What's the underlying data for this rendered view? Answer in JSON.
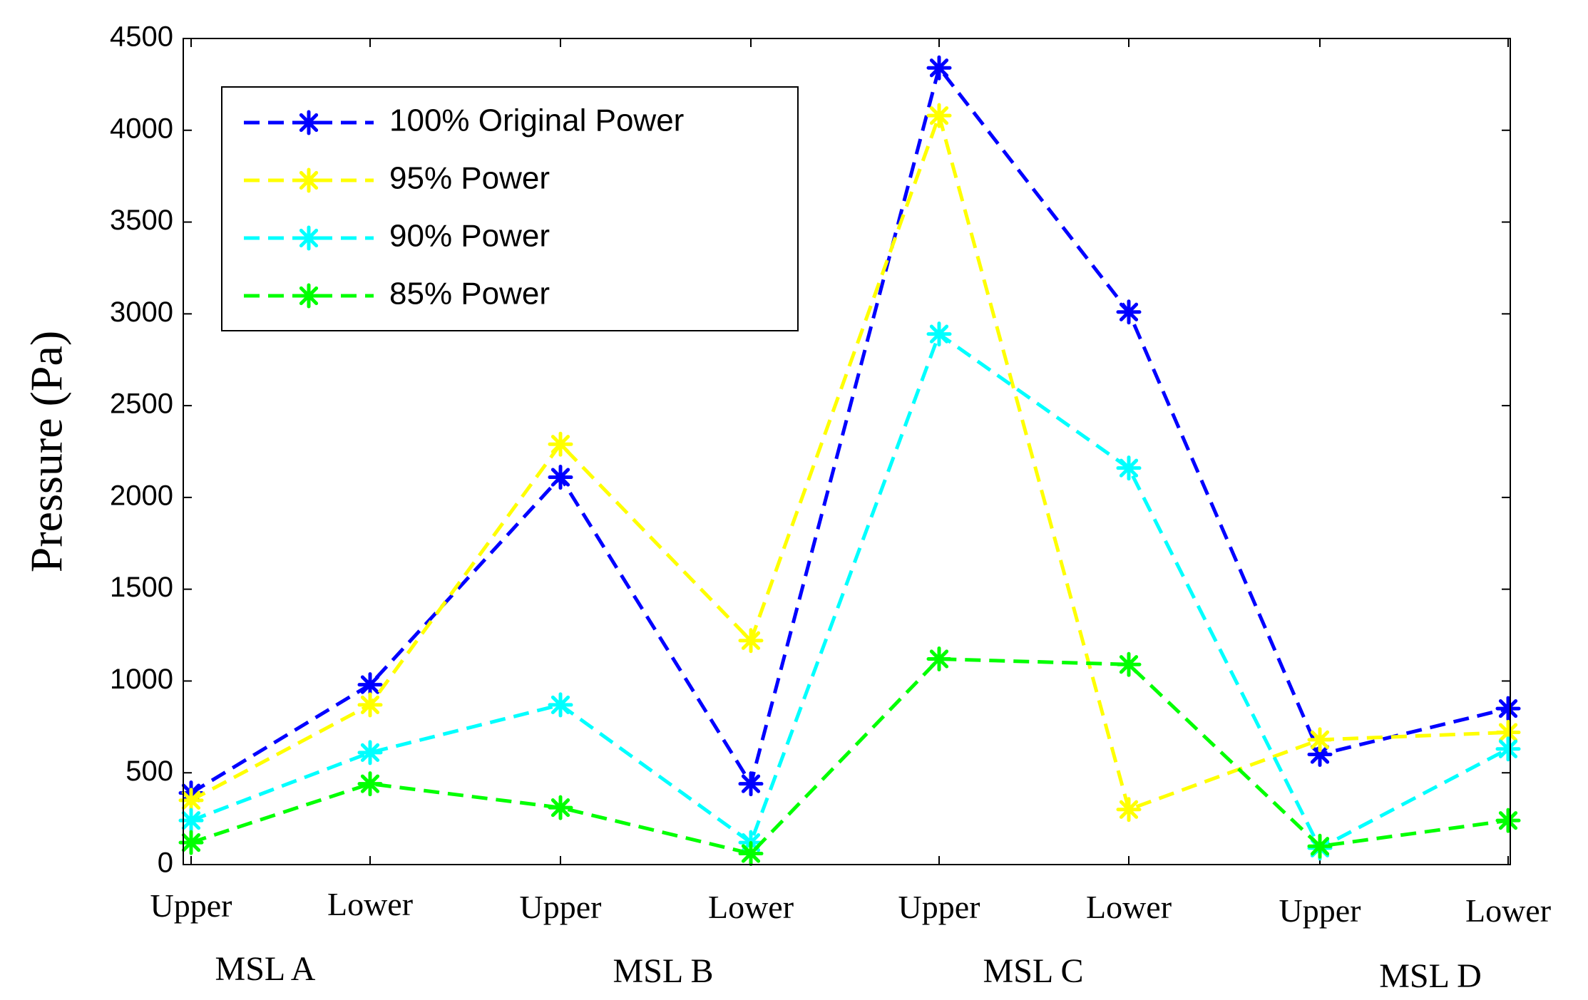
{
  "chart_data": {
    "type": "line",
    "title": "",
    "xlabel": "",
    "ylabel": "Pressure (Pa)",
    "ylim": [
      0,
      4500
    ],
    "yticks": [
      0,
      500,
      1000,
      1500,
      2000,
      2500,
      3000,
      3500,
      4000,
      4500
    ],
    "categories": [
      "Upper",
      "Lower",
      "Upper",
      "Lower",
      "Upper",
      "Lower",
      "Upper",
      "Lower"
    ],
    "groups": [
      "MSL A",
      "MSL B",
      "MSL C",
      "MSL D"
    ],
    "legend_position": "top-left",
    "grid": false,
    "series": [
      {
        "name": "100% Original Power",
        "color": "#0000FF",
        "values": [
          390,
          980,
          2110,
          440,
          4340,
          3010,
          600,
          850
        ]
      },
      {
        "name": "95% Power",
        "color": "#FFFF00",
        "values": [
          350,
          870,
          2290,
          1220,
          4080,
          300,
          680,
          720
        ]
      },
      {
        "name": "90% Power",
        "color": "#00FFFF",
        "values": [
          240,
          610,
          870,
          120,
          2890,
          2160,
          90,
          630
        ]
      },
      {
        "name": "85% Power",
        "color": "#00FF00",
        "values": [
          120,
          440,
          310,
          60,
          1120,
          1090,
          100,
          240
        ]
      }
    ]
  }
}
